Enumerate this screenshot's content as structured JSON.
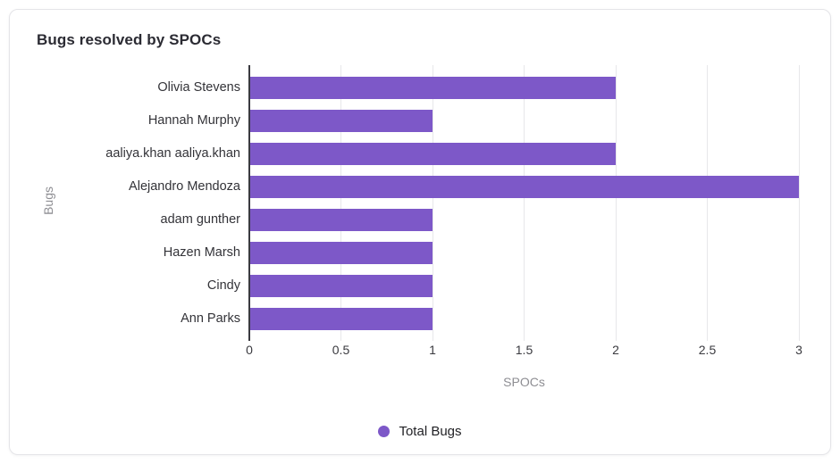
{
  "card": {
    "title": "Bugs resolved by SPOCs"
  },
  "chart_data": {
    "type": "bar",
    "orientation": "horizontal",
    "title": "Bugs resolved by SPOCs",
    "categories": [
      "Olivia Stevens",
      "Hannah Murphy",
      "aaliya.khan aaliya.khan",
      "Alejandro Mendoza",
      "adam gunther",
      "Hazen Marsh",
      "Cindy",
      "Ann Parks"
    ],
    "series": [
      {
        "name": "Total Bugs",
        "values": [
          2,
          1,
          2,
          3,
          1,
          1,
          1,
          1
        ],
        "color": "#7d58c8"
      }
    ],
    "xlabel": "SPOCs",
    "ylabel": "Bugs",
    "xlim": [
      0,
      3
    ],
    "xticks": [
      0,
      0.5,
      1,
      1.5,
      2,
      2.5,
      3
    ],
    "xtick_labels": [
      "0",
      "0.5",
      "1",
      "1.5",
      "2",
      "2.5",
      "3"
    ],
    "grid": "vertical",
    "legend_position": "bottom"
  },
  "legend": {
    "label": "Total Bugs"
  },
  "colors": {
    "bar": "#7d58c8",
    "axis": "#3a3a40",
    "grid": "#e7e7ea",
    "text_dark": "#333338",
    "text_muted": "#8e8e93",
    "card_border": "#e4e4e8"
  }
}
